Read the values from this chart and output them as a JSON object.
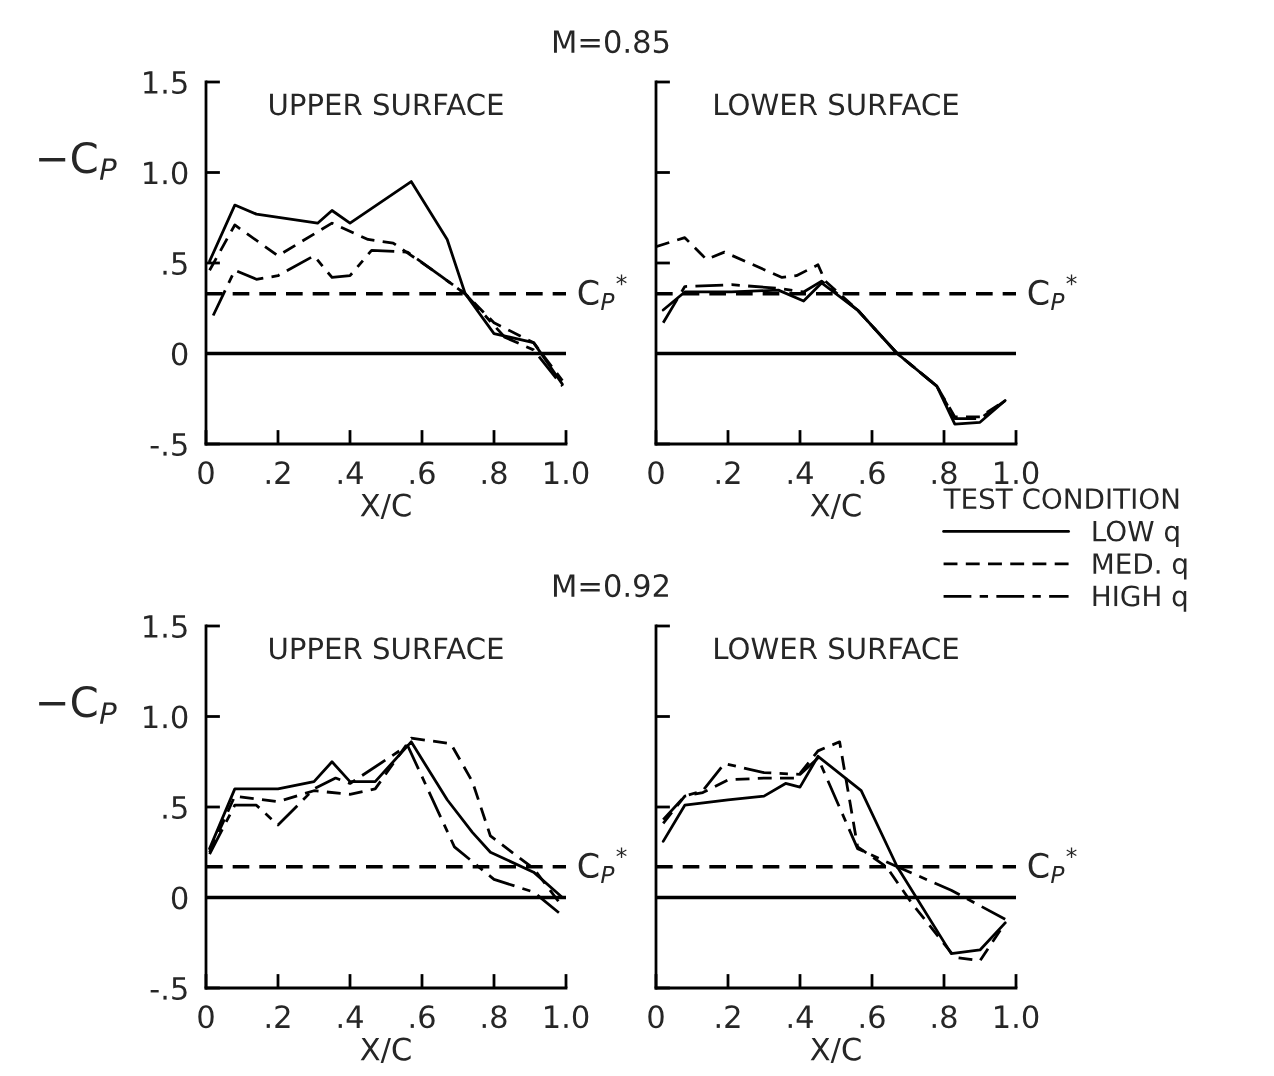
{
  "chart_data": [
    {
      "type": "line",
      "title": "M=0.85",
      "ylabel": "−C$_{P}$",
      "annotations": [
        "UPPER SURFACE"
      ],
      "xlabel": "X/C",
      "xlim": [
        0,
        1.0
      ],
      "ylim": [
        -0.5,
        1.5
      ],
      "xticks": [
        0,
        {
          "value": 0.2,
          "label": ".2"
        },
        {
          "value": 0.4,
          "label": ".4"
        },
        {
          "value": 0.6,
          "label": ".6"
        },
        {
          "value": 0.8,
          "label": ".8"
        },
        {
          "value": 1.0,
          "label": "1.0"
        }
      ],
      "yticks": [
        {
          "value": -0.5,
          "label": "-.5"
        },
        0,
        {
          "value": 0.5,
          "label": ".5"
        },
        {
          "value": 1.0,
          "label": "1.0"
        },
        {
          "value": 1.5,
          "label": "1.5"
        }
      ],
      "ref_lines": [
        {
          "axis": "y",
          "value": 0,
          "color": "#000000",
          "line_style": "solid"
        },
        {
          "axis": "y",
          "value": 0.33,
          "label": "C$_{P}$$^{*}$",
          "color": "#000000",
          "line_style": "dashed"
        }
      ],
      "grid": false,
      "legend": false,
      "series": [
        {
          "color": "#000000",
          "line_style": "solid",
          "x": [
            0.01,
            0.08,
            0.14,
            0.31,
            0.35,
            0.4,
            0.57,
            0.67,
            0.72,
            0.8,
            0.91,
            0.99
          ],
          "values": [
            0.51,
            0.82,
            0.77,
            0.72,
            0.79,
            0.72,
            0.95,
            0.63,
            0.33,
            0.11,
            0.06,
            -0.17
          ]
        },
        {
          "color": "#000000",
          "line_style": "dashed",
          "x": [
            0.01,
            0.08,
            0.2,
            0.35,
            0.45,
            0.52,
            0.63,
            0.72,
            0.8,
            0.91,
            0.99
          ],
          "values": [
            0.46,
            0.71,
            0.54,
            0.72,
            0.63,
            0.61,
            0.46,
            0.33,
            0.17,
            0.06,
            -0.15
          ]
        },
        {
          "color": "#000000",
          "line_style": "dashdot",
          "x": [
            0.02,
            0.08,
            0.14,
            0.2,
            0.3,
            0.35,
            0.4,
            0.46,
            0.56,
            0.72,
            0.83,
            0.91,
            0.99
          ],
          "values": [
            0.21,
            0.46,
            0.41,
            0.43,
            0.54,
            0.42,
            0.43,
            0.57,
            0.56,
            0.33,
            0.09,
            0.02,
            -0.18
          ]
        }
      ]
    },
    {
      "type": "line",
      "annotations": [
        "LOWER SURFACE"
      ],
      "xlabel": "X/C",
      "tick_labels": "x",
      "xlim": [
        0,
        1.0
      ],
      "ylim": [
        -0.5,
        1.5
      ],
      "xticks": [
        0,
        {
          "value": 0.2,
          "label": ".2"
        },
        {
          "value": 0.4,
          "label": ".4"
        },
        {
          "value": 0.6,
          "label": ".6"
        },
        {
          "value": 0.8,
          "label": ".8"
        },
        {
          "value": 1.0,
          "label": "1.0"
        }
      ],
      "yticks": [
        {
          "value": -0.5,
          "label": null
        },
        {
          "value": 0,
          "label": null
        },
        {
          "value": 0.5,
          "label": null
        },
        {
          "value": 1.0,
          "label": null
        },
        {
          "value": 1.5,
          "label": null
        }
      ],
      "ref_lines": [
        {
          "axis": "y",
          "value": 0,
          "color": "#000000",
          "line_style": "solid"
        },
        {
          "axis": "y",
          "value": 0.33,
          "label": "C$_{P}$$^{*}$",
          "color": "#000000",
          "line_style": "dashed"
        }
      ],
      "grid": false,
      "legend": false,
      "series": [
        {
          "color": "#000000",
          "line_style": "solid",
          "x": [
            0.02,
            0.08,
            0.21,
            0.34,
            0.41,
            0.46,
            0.56,
            0.67,
            0.78,
            0.83,
            0.9,
            0.97
          ],
          "values": [
            0.24,
            0.34,
            0.34,
            0.35,
            0.29,
            0.39,
            0.24,
            0,
            -0.18,
            -0.39,
            -0.38,
            -0.26
          ]
        },
        {
          "color": "#000000",
          "line_style": "dashed",
          "x": [
            0.0,
            0.08,
            0.14,
            0.19,
            0.35,
            0.39,
            0.45,
            0.47,
            0.56,
            0.67,
            0.78,
            0.83,
            0.9,
            0.97
          ],
          "values": [
            0.59,
            0.64,
            0.52,
            0.56,
            0.42,
            0.43,
            0.49,
            0.4,
            0.24,
            0,
            -0.18,
            -0.35,
            -0.35,
            -0.26
          ]
        },
        {
          "color": "#000000",
          "line_style": "dashdot",
          "x": [
            0.02,
            0.08,
            0.21,
            0.34,
            0.41,
            0.46,
            0.56,
            0.67,
            0.78,
            0.83,
            0.9,
            0.97
          ],
          "values": [
            0.17,
            0.37,
            0.38,
            0.36,
            0.34,
            0.4,
            0.24,
            0,
            -0.18,
            -0.36,
            -0.36,
            -0.26
          ]
        }
      ]
    },
    {
      "type": "line",
      "title": "M=0.92",
      "ylabel": "−C$_{P}$",
      "annotations": [
        "UPPER SURFACE"
      ],
      "xlabel": "X/C",
      "xlim": [
        0,
        1.0
      ],
      "ylim": [
        -0.5,
        1.5
      ],
      "xticks": [
        0,
        {
          "value": 0.2,
          "label": ".2"
        },
        {
          "value": 0.4,
          "label": ".4"
        },
        {
          "value": 0.6,
          "label": ".6"
        },
        {
          "value": 0.8,
          "label": ".8"
        },
        {
          "value": 1.0,
          "label": "1.0"
        }
      ],
      "yticks": [
        {
          "value": -0.5,
          "label": "-.5"
        },
        0,
        {
          "value": 0.5,
          "label": ".5"
        },
        {
          "value": 1.0,
          "label": "1.0"
        },
        {
          "value": 1.5,
          "label": "1.5"
        }
      ],
      "ref_lines": [
        {
          "axis": "y",
          "value": 0,
          "color": "#000000",
          "line_style": "solid"
        },
        {
          "axis": "y",
          "value": 0.17,
          "label": "C$_{P}$$^{*}$",
          "color": "#000000",
          "line_style": "dashed"
        }
      ],
      "grid": false,
      "legend": false,
      "series": [
        {
          "color": "#000000",
          "line_style": "solid",
          "x": [
            0.01,
            0.08,
            0.2,
            0.3,
            0.35,
            0.4,
            0.47,
            0.57,
            0.67,
            0.74,
            0.79,
            0.91,
            0.99
          ],
          "values": [
            0.27,
            0.6,
            0.6,
            0.64,
            0.75,
            0.64,
            0.64,
            0.86,
            0.54,
            0.36,
            0.25,
            0.14,
            0.0
          ]
        },
        {
          "color": "#000000",
          "line_style": "dashed",
          "x": [
            0.01,
            0.08,
            0.2,
            0.3,
            0.4,
            0.47,
            0.57,
            0.68,
            0.74,
            0.79,
            0.91,
            0.99
          ],
          "values": [
            0.25,
            0.56,
            0.53,
            0.59,
            0.57,
            0.6,
            0.88,
            0.85,
            0.64,
            0.34,
            0.16,
            -0.05
          ]
        },
        {
          "color": "#000000",
          "line_style": "dashdot",
          "x": [
            0.01,
            0.08,
            0.14,
            0.2,
            0.3,
            0.36,
            0.4,
            0.56,
            0.69,
            0.8,
            0.91,
            0.99
          ],
          "values": [
            0.24,
            0.51,
            0.51,
            0.4,
            0.6,
            0.66,
            0.63,
            0.84,
            0.28,
            0.1,
            0.03,
            -0.1
          ]
        }
      ]
    },
    {
      "type": "line",
      "annotations": [
        "LOWER SURFACE"
      ],
      "xlabel": "X/C",
      "tick_labels": "x",
      "legend_title": "TEST CONDITION",
      "xlim": [
        0,
        1.0
      ],
      "ylim": [
        -0.5,
        1.5
      ],
      "xticks": [
        0,
        {
          "value": 0.2,
          "label": ".2"
        },
        {
          "value": 0.4,
          "label": ".4"
        },
        {
          "value": 0.6,
          "label": ".6"
        },
        {
          "value": 0.8,
          "label": ".8"
        },
        {
          "value": 1.0,
          "label": "1.0"
        }
      ],
      "yticks": [
        {
          "value": -0.5,
          "label": null
        },
        {
          "value": 0,
          "label": null
        },
        {
          "value": 0.5,
          "label": null
        },
        {
          "value": 1.0,
          "label": null
        },
        {
          "value": 1.5,
          "label": null
        }
      ],
      "ref_lines": [
        {
          "axis": "y",
          "value": 0,
          "color": "#000000",
          "line_style": "solid"
        },
        {
          "axis": "y",
          "value": 0.17,
          "label": "C$_{P}$$^{*}$",
          "color": "#000000",
          "line_style": "dashed"
        }
      ],
      "grid": false,
      "legend": "top right",
      "series": [
        {
          "name": "LOW q",
          "color": "#000000",
          "line_style": "solid",
          "x": [
            0.02,
            0.08,
            0.2,
            0.3,
            0.36,
            0.4,
            0.45,
            0.57,
            0.67,
            0.82,
            0.9,
            0.97
          ],
          "values": [
            0.31,
            0.51,
            0.54,
            0.56,
            0.63,
            0.61,
            0.78,
            0.59,
            0.17,
            -0.31,
            -0.29,
            -0.14
          ]
        },
        {
          "name": "MED. q",
          "color": "#000000",
          "line_style": "dashed",
          "x": [
            0.02,
            0.08,
            0.13,
            0.2,
            0.3,
            0.39,
            0.45,
            0.51,
            0.56,
            0.64,
            0.71,
            0.83,
            0.9,
            0.97
          ],
          "values": [
            0.41,
            0.56,
            0.58,
            0.65,
            0.66,
            0.66,
            0.81,
            0.86,
            0.28,
            0.17,
            -0.03,
            -0.33,
            -0.35,
            -0.14
          ]
        },
        {
          "name": "HIGH q",
          "color": "#000000",
          "line_style": "dashdot",
          "x": [
            0.02,
            0.08,
            0.13,
            0.19,
            0.3,
            0.4,
            0.45,
            0.56,
            0.67,
            0.82,
            0.97
          ],
          "values": [
            0.43,
            0.56,
            0.59,
            0.74,
            0.69,
            0.68,
            0.77,
            0.27,
            0.17,
            0.04,
            -0.12
          ]
        }
      ]
    }
  ]
}
